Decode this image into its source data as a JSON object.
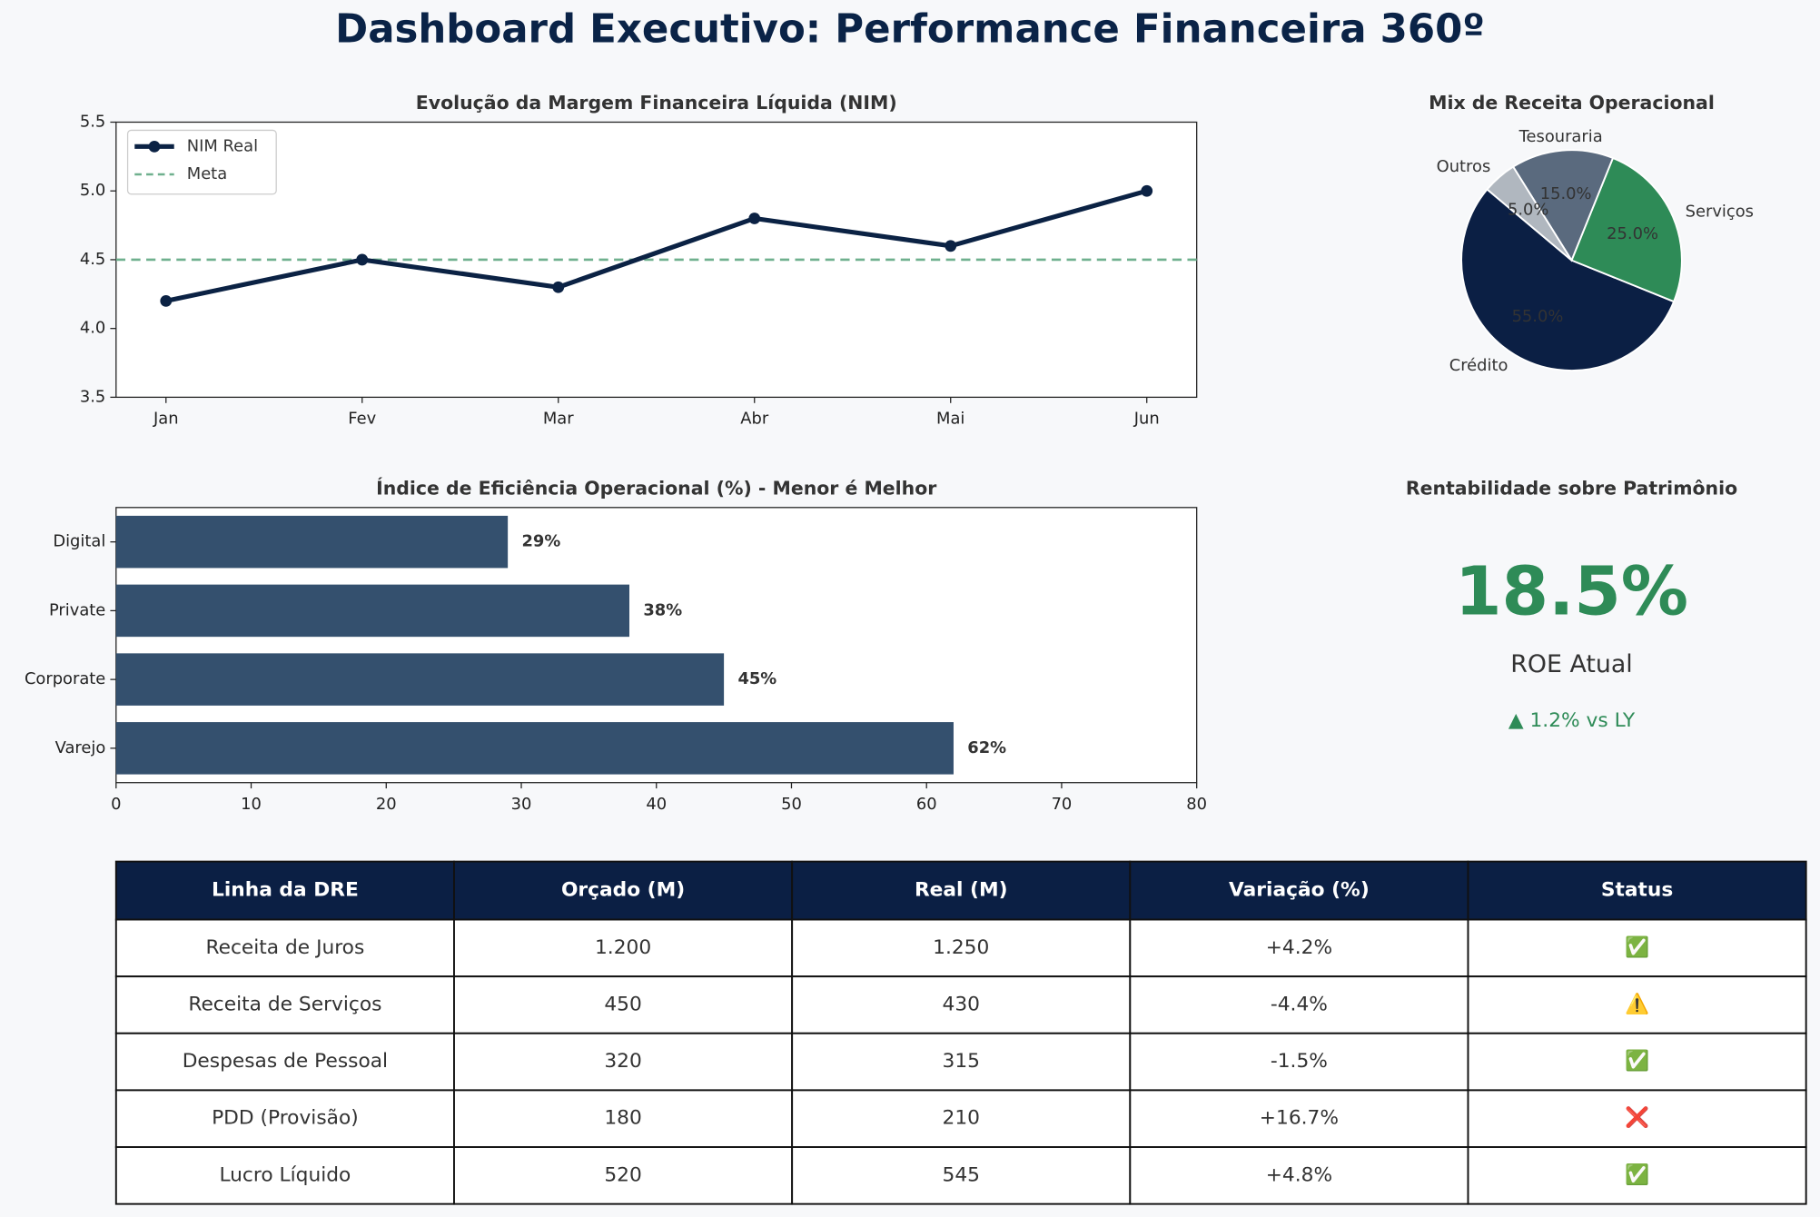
{
  "title": "Dashboard Executivo: Performance Financeira 360º",
  "chart_data": [
    {
      "type": "line",
      "title": "Evolução da Margem Financeira Líquida (NIM)",
      "categories": [
        "Jan",
        "Fev",
        "Mar",
        "Abr",
        "Mai",
        "Jun"
      ],
      "series": [
        {
          "name": "NIM Real",
          "color": "#0b2244",
          "values": [
            4.2,
            4.5,
            4.3,
            4.8,
            4.6,
            5.0
          ]
        }
      ],
      "target": {
        "name": "Meta",
        "color": "#6fb08e",
        "value": 4.5
      },
      "ylim": [
        3.5,
        5.5
      ],
      "yticks": [
        3.5,
        {
          "value": 4,
          "label": "4.0"
        },
        4.5,
        {
          "value": 5,
          "label": "5.0"
        },
        5.5
      ],
      "legend": "upper-left"
    },
    {
      "type": "pie",
      "title": "Mix de Receita Operacional",
      "categories": [
        "Crédito",
        "Serviços",
        "Tesouraria",
        "Outros"
      ],
      "values": [
        55,
        25,
        15,
        5
      ],
      "value_labels": [
        "55.0%",
        "25.0%",
        "15.0%",
        "5.0%"
      ],
      "colors": [
        "#0b1f44",
        "#2e8b57",
        "#5a6a7e",
        "#b0b7bf"
      ]
    },
    {
      "type": "barh",
      "title": "Índice de Eficiência Operacional (%) - Menor é Melhor",
      "categories": [
        "Varejo",
        "Corporate",
        "Private",
        "Digital"
      ],
      "values": [
        62,
        45,
        38,
        29
      ],
      "value_labels": [
        "62%",
        "45%",
        "38%",
        "29%"
      ],
      "color": "#34506e",
      "xlim": [
        0,
        80
      ],
      "xticks": [
        0,
        10,
        20,
        30,
        40,
        50,
        60,
        70,
        80
      ]
    }
  ],
  "kpi": {
    "title": "Rentabilidade sobre Patrimônio",
    "value": "18.5%",
    "label": "ROE Atual",
    "delta": "▲ 1.2% vs LY"
  },
  "table": {
    "columns": [
      "Linha da DRE",
      "Orçado (M)",
      "Real (M)",
      "Variação (%)",
      "Status"
    ],
    "rows": [
      [
        "Receita de Juros",
        "1.200",
        "1.250",
        "+4.2%",
        "✅"
      ],
      [
        "Receita de Serviços",
        "450",
        "430",
        "-4.4%",
        "⚠️"
      ],
      [
        "Despesas de Pessoal",
        "320",
        "315",
        "-1.5%",
        "✅"
      ],
      [
        "PDD (Provisão)",
        "180",
        "210",
        "+16.7%",
        "❌"
      ],
      [
        "Lucro Líquido",
        "520",
        "545",
        "+4.8%",
        "✅"
      ]
    ]
  }
}
